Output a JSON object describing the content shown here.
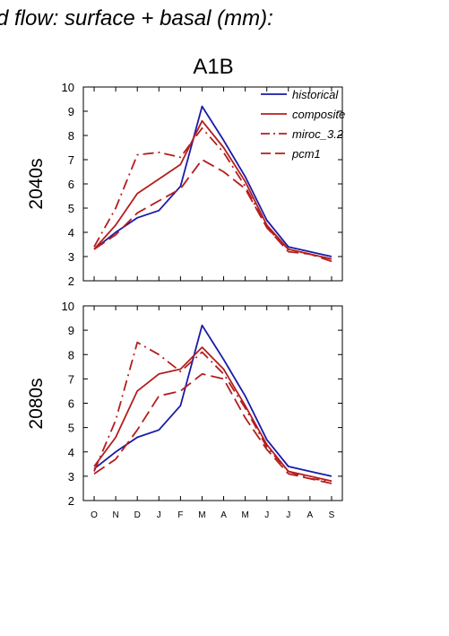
{
  "figure_title": "d flow: surface + basal (mm):",
  "scenario": "A1B",
  "colors": {
    "historical": "#1a1aa6",
    "projected": "#b41e1e",
    "axis": "#000000"
  },
  "chart_data": [
    {
      "type": "line",
      "row_label": "2040s",
      "categories": [
        "O",
        "N",
        "D",
        "J",
        "F",
        "M",
        "A",
        "M",
        "J",
        "J",
        "A",
        "S"
      ],
      "ylim": [
        2,
        10
      ],
      "yticks": [
        2,
        3,
        4,
        5,
        6,
        7,
        8,
        9,
        10
      ],
      "series": [
        {
          "name": "historical",
          "dash": "solid",
          "values": [
            3.3,
            4.0,
            4.6,
            4.9,
            5.9,
            9.2,
            7.8,
            6.3,
            4.5,
            3.4,
            3.2,
            3.0
          ]
        },
        {
          "name": "composite",
          "dash": "solid",
          "values": [
            3.3,
            4.3,
            5.6,
            6.2,
            6.8,
            8.6,
            7.5,
            6.1,
            4.3,
            3.3,
            3.1,
            2.9
          ]
        },
        {
          "name": "miroc_3.2",
          "dash": "dashdot",
          "values": [
            3.4,
            5.0,
            7.2,
            7.3,
            7.1,
            8.3,
            7.3,
            5.9,
            4.2,
            3.3,
            3.1,
            2.9
          ]
        },
        {
          "name": "pcm1",
          "dash": "dash",
          "values": [
            3.3,
            3.9,
            4.8,
            5.3,
            5.8,
            7.0,
            6.5,
            5.8,
            4.2,
            3.2,
            3.1,
            2.8
          ]
        }
      ]
    },
    {
      "type": "line",
      "row_label": "2080s",
      "categories": [
        "O",
        "N",
        "D",
        "J",
        "F",
        "M",
        "A",
        "M",
        "J",
        "J",
        "A",
        "S"
      ],
      "ylim": [
        2,
        10
      ],
      "yticks": [
        2,
        3,
        4,
        5,
        6,
        7,
        8,
        9,
        10
      ],
      "series": [
        {
          "name": "historical",
          "dash": "solid",
          "values": [
            3.3,
            4.0,
            4.6,
            4.9,
            5.9,
            9.2,
            7.8,
            6.3,
            4.5,
            3.4,
            3.2,
            3.0
          ]
        },
        {
          "name": "composite",
          "dash": "solid",
          "values": [
            3.4,
            4.6,
            6.5,
            7.2,
            7.4,
            8.3,
            7.4,
            5.9,
            4.3,
            3.2,
            3.0,
            2.8
          ]
        },
        {
          "name": "miroc_3.2",
          "dash": "dashdot",
          "values": [
            3.2,
            5.3,
            8.5,
            8.0,
            7.3,
            8.1,
            7.2,
            5.8,
            4.2,
            3.2,
            2.9,
            2.8
          ]
        },
        {
          "name": "pcm1",
          "dash": "dash",
          "values": [
            3.1,
            3.7,
            4.9,
            6.3,
            6.5,
            7.2,
            7.0,
            5.4,
            4.1,
            3.1,
            2.9,
            2.7
          ]
        }
      ]
    }
  ]
}
